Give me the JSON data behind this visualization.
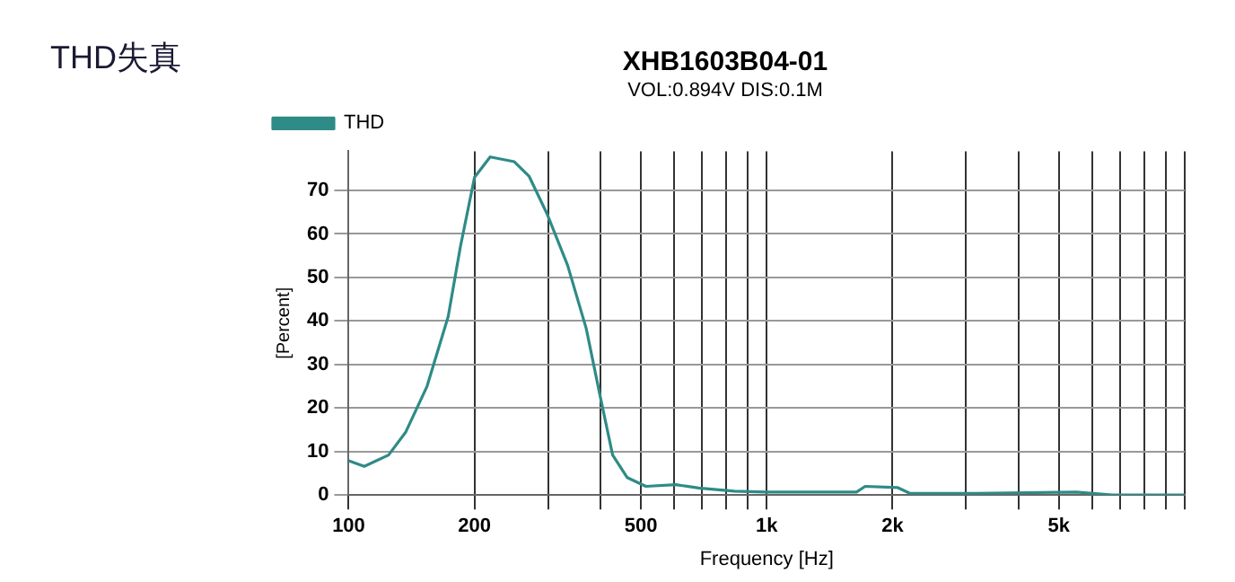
{
  "chart_data": {
    "type": "line",
    "title": "XHB1603B04-01",
    "subtitle": "VOL:0.894V DIS:0.1M",
    "annotations": [
      "THD失真"
    ],
    "xlabel": "Frequency [Hz]",
    "ylabel": "[Percent]",
    "log": "x",
    "x": [
      100,
      109,
      124.6,
      137,
      154,
      173,
      185,
      200,
      218,
      249,
      270,
      298,
      334,
      370,
      400,
      428,
      464,
      514,
      606,
      688,
      837,
      1000,
      1300,
      1640,
      1720,
      2060,
      2200,
      3160,
      5500,
      6700,
      10000
    ],
    "series": [
      {
        "name": "THD",
        "color": "#2e8b87",
        "values": [
          7.9,
          6.6,
          9.2,
          14.5,
          25,
          41,
          57,
          73,
          77.7,
          76.6,
          73.3,
          64.7,
          52.8,
          38.3,
          22.5,
          9.2,
          4,
          2,
          2.4,
          1.6,
          0.9,
          0.7,
          0.7,
          0.7,
          2,
          1.7,
          0.4,
          0.4,
          0.7,
          0,
          0
        ]
      }
    ],
    "xlim": [
      100,
      10000
    ],
    "ylim": [
      0,
      79
    ],
    "xticks": [
      100,
      200,
      {
        "value": 300,
        "label": null
      },
      {
        "value": 400,
        "label": null
      },
      500,
      {
        "value": 600,
        "label": null
      },
      {
        "value": 700,
        "label": null
      },
      {
        "value": 800,
        "label": null
      },
      {
        "value": 900,
        "label": null
      },
      {
        "value": 1000,
        "label": "1k"
      },
      {
        "value": 2000,
        "label": "2k"
      },
      {
        "value": 3000,
        "label": null
      },
      {
        "value": 4000,
        "label": null
      },
      {
        "value": 5000,
        "label": "5k"
      },
      {
        "value": 6000,
        "label": null
      },
      {
        "value": 7000,
        "label": null
      },
      {
        "value": 8000,
        "label": null
      },
      {
        "value": 9000,
        "label": null
      },
      {
        "value": 10000,
        "label": null
      }
    ],
    "yticks": [
      0,
      10,
      20,
      30,
      40,
      50,
      60,
      70
    ],
    "grid": true,
    "legend": "top left",
    "marker": "none",
    "line_style": "solid"
  }
}
